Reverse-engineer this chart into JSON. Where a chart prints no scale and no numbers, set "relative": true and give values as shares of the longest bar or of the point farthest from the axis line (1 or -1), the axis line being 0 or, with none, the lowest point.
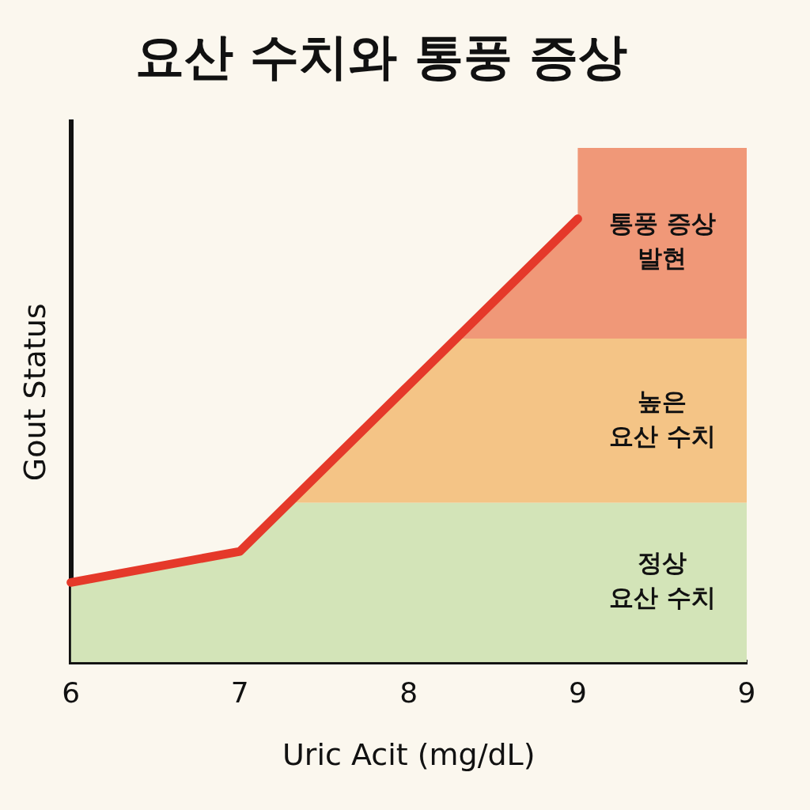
{
  "chart_data": {
    "type": "line",
    "title": "요산 수치와 통풍 증상",
    "xlabel": "Uric Acit (mg/dL)",
    "ylabel": "Gout Status",
    "categories": [
      "6",
      "7",
      "8",
      "9",
      "9"
    ],
    "relative": true,
    "marker": "none",
    "series": [
      {
        "color": "#e5392a",
        "values": [
          0.18,
          0.25,
          0.625,
          1,
          null
        ]
      }
    ],
    "bands": [
      {
        "axis": "y",
        "from": 0,
        "to": 0.36,
        "label": "정상\n요산 수치",
        "color": "#d3e4b8"
      },
      {
        "axis": "y",
        "from": 0.36,
        "to": 0.73,
        "label": "높은\n요산 수치",
        "color": "#f4c486"
      },
      {
        "axis": "y",
        "from": 0.73,
        "to": 1.16,
        "label": "통풍 증상\n발현",
        "color": "#f09878"
      }
    ]
  }
}
